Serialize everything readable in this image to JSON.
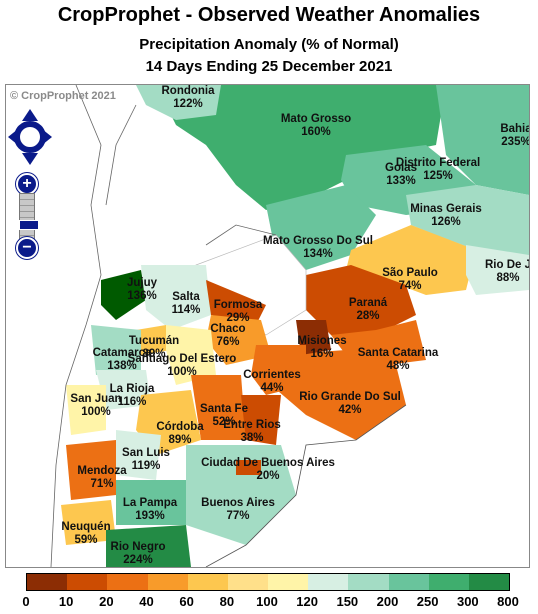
{
  "header": {
    "title": "CropProphet - Observed Weather Anomalies",
    "subtitle": "Precipitation Anomaly (% of Normal)",
    "period": "14 Days Ending 25 December 2021"
  },
  "map": {
    "copyright": "© CropProphet 2021",
    "regions": [
      {
        "id": "rondonia",
        "name": "Rondonia",
        "value": "122%"
      },
      {
        "id": "mato-grosso",
        "name": "Mato Grosso",
        "value": "160%"
      },
      {
        "id": "bahia",
        "name": "Bahia",
        "value": "235%"
      },
      {
        "id": "goias",
        "name": "Goias",
        "value": "133%"
      },
      {
        "id": "distrito-federal",
        "name": "Distrito Federal",
        "value": "125%"
      },
      {
        "id": "minas-gerais",
        "name": "Minas Gerais",
        "value": "126%"
      },
      {
        "id": "mato-grosso-do-sul",
        "name": "Mato Grosso Do Sul",
        "value": "134%"
      },
      {
        "id": "rio-de-janeiro",
        "name": "Rio De J",
        "value": "88%"
      },
      {
        "id": "sao-paulo",
        "name": "São Paulo",
        "value": "74%"
      },
      {
        "id": "parana",
        "name": "Paraná",
        "value": "28%"
      },
      {
        "id": "santa-catarina",
        "name": "Santa Catarina",
        "value": "48%"
      },
      {
        "id": "rio-grande-do-sul",
        "name": "Rio Grande Do Sul",
        "value": "42%"
      },
      {
        "id": "misiones",
        "name": "Misiones",
        "value": "16%"
      },
      {
        "id": "corrientes",
        "name": "Corrientes",
        "value": "44%"
      },
      {
        "id": "formosa",
        "name": "Formosa",
        "value": "29%"
      },
      {
        "id": "chaco",
        "name": "Chaco",
        "value": "76%"
      },
      {
        "id": "salta",
        "name": "Salta",
        "value": "114%"
      },
      {
        "id": "jujuy",
        "name": "Jujuy",
        "value": "136%"
      },
      {
        "id": "tucuman",
        "name": "Tucumán",
        "value": "89%"
      },
      {
        "id": "catamarca",
        "name": "Catamarca",
        "value": "138%"
      },
      {
        "id": "santiago-del-estero",
        "name": "Santiago Del Estero",
        "value": "100%"
      },
      {
        "id": "la-rioja",
        "name": "La Rioja",
        "value": "116%"
      },
      {
        "id": "san-juan",
        "name": "San Juan",
        "value": "100%"
      },
      {
        "id": "santa-fe",
        "name": "Santa Fe",
        "value": "52%"
      },
      {
        "id": "entre-rios",
        "name": "Entre Rios",
        "value": "38%"
      },
      {
        "id": "cordoba",
        "name": "Córdoba",
        "value": "89%"
      },
      {
        "id": "san-luis",
        "name": "San Luis",
        "value": "119%"
      },
      {
        "id": "mendoza",
        "name": "Mendoza",
        "value": "71%"
      },
      {
        "id": "ciudad-de-buenos-aires",
        "name": "Ciudad De Buenos Aires",
        "value": "20%"
      },
      {
        "id": "la-pampa",
        "name": "La Pampa",
        "value": "193%"
      },
      {
        "id": "buenos-aires",
        "name": "Buenos Aires",
        "value": "77%"
      },
      {
        "id": "neuquen",
        "name": "Neuquén",
        "value": "59%"
      },
      {
        "id": "rio-negro",
        "name": "Rio Negro",
        "value": "224%"
      }
    ]
  },
  "legend": {
    "colors": [
      "#8c2d04",
      "#cc4c02",
      "#ec7014",
      "#f89b2a",
      "#fdc74f",
      "#ffe08a",
      "#fff4a8",
      "#d7efe3",
      "#a3dcc4",
      "#69c49c",
      "#3fae6e",
      "#238b45",
      "#005a00"
    ],
    "ticks": [
      "0",
      "10",
      "20",
      "40",
      "60",
      "80",
      "100",
      "120",
      "150",
      "200",
      "250",
      "300",
      "800"
    ]
  },
  "controls": {
    "zoom_in": "+",
    "zoom_out": "−"
  }
}
